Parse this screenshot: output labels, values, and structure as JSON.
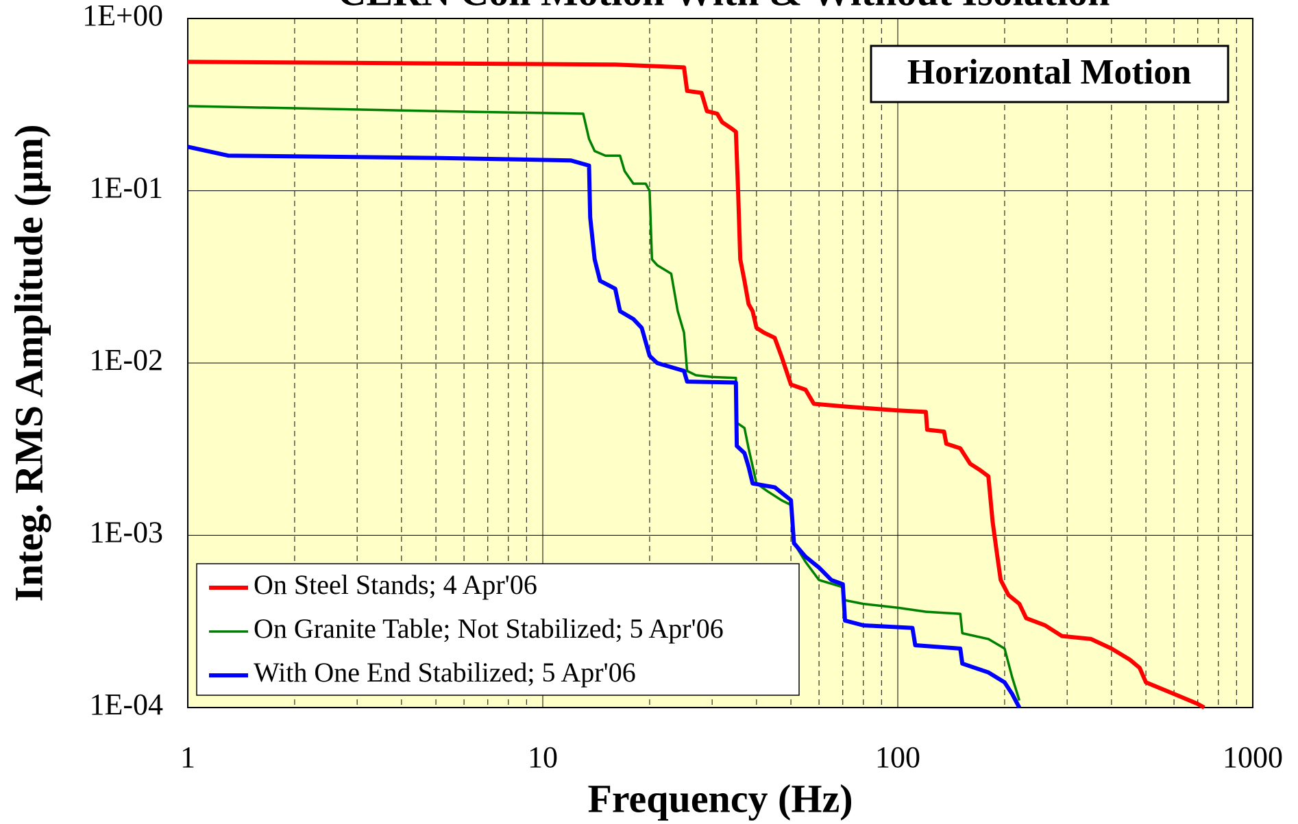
{
  "chart_data": {
    "type": "line",
    "title": "CERN Coil Motion With & Without Isolation",
    "x_label": "Frequency (Hz)",
    "y_label": "Integ. RMS Amplitude (µm)",
    "annotation": "Horizontal Motion",
    "x_log": true,
    "y_log": true,
    "xlim": [
      1,
      1000
    ],
    "ylim": [
      0.0001,
      1
    ],
    "xticks": [
      1,
      10,
      100,
      1000
    ],
    "x_minor_gridlines": [
      2,
      3,
      4,
      5,
      6,
      7,
      8,
      9,
      20,
      30,
      40,
      50,
      60,
      70,
      80,
      90,
      200,
      300,
      400,
      500,
      600,
      700,
      800,
      900
    ],
    "yticks": [
      {
        "value": 0.0001,
        "label": "1E-04"
      },
      {
        "value": 0.001,
        "label": "1E-03"
      },
      {
        "value": 0.01,
        "label": "1E-02"
      },
      {
        "value": 0.1,
        "label": "1E-01"
      },
      {
        "value": 1,
        "label": "1E+00"
      }
    ],
    "grid": true,
    "legend": "lower left",
    "background": "#ffffc8",
    "series": [
      {
        "name": "On Steel Stands; 4 Apr'06",
        "color": "#ff0000",
        "x": [
          1,
          16,
          25,
          25.5,
          28,
          29,
          31,
          32,
          34,
          35,
          35.5,
          36,
          37,
          38,
          39,
          40,
          42,
          45,
          47,
          50,
          55,
          58,
          70,
          100,
          120,
          121,
          135,
          137,
          150,
          160,
          170,
          180,
          185,
          190,
          195,
          205,
          220,
          230,
          260,
          290,
          350,
          400,
          450,
          480,
          500,
          600,
          700,
          730
        ],
        "values": [
          0.56,
          0.54,
          0.52,
          0.38,
          0.37,
          0.29,
          0.28,
          0.25,
          0.23,
          0.22,
          0.1,
          0.04,
          0.03,
          0.022,
          0.02,
          0.016,
          0.015,
          0.014,
          0.011,
          0.0075,
          0.007,
          0.0058,
          0.0056,
          0.0053,
          0.0052,
          0.0041,
          0.004,
          0.0034,
          0.0032,
          0.0026,
          0.0024,
          0.0022,
          0.0012,
          0.0008,
          0.00055,
          0.00045,
          0.0004,
          0.00033,
          0.0003,
          0.00026,
          0.00025,
          0.00022,
          0.00019,
          0.00017,
          0.00014,
          0.00012,
          0.000105,
          0.0001
        ]
      },
      {
        "name": "On Granite Table; Not Stabilized; 5 Apr'06",
        "color": "#008000",
        "x": [
          1,
          5,
          13,
          13.5,
          14,
          15,
          16.5,
          17,
          18,
          19.5,
          20,
          20.3,
          21,
          23,
          24,
          25,
          25.5,
          27,
          30,
          35,
          35.2,
          37,
          38,
          40,
          43,
          47,
          50,
          51,
          55,
          60,
          70,
          71,
          80,
          100,
          120,
          150,
          152,
          180,
          200,
          210,
          220
        ],
        "values": [
          0.31,
          0.29,
          0.28,
          0.2,
          0.17,
          0.16,
          0.16,
          0.13,
          0.11,
          0.11,
          0.1,
          0.04,
          0.037,
          0.033,
          0.02,
          0.015,
          0.009,
          0.0085,
          0.0083,
          0.0082,
          0.0045,
          0.0042,
          0.0032,
          0.002,
          0.0018,
          0.0016,
          0.0015,
          0.0009,
          0.0007,
          0.00055,
          0.0005,
          0.00042,
          0.0004,
          0.00038,
          0.00036,
          0.00035,
          0.00027,
          0.00025,
          0.00022,
          0.00015,
          0.00011
        ]
      },
      {
        "name": "With One End Stabilized; 5 Apr'06",
        "color": "#0000ff",
        "x": [
          1,
          1.3,
          5,
          12,
          13.5,
          13.6,
          14,
          14.5,
          16,
          16.5,
          18,
          19,
          20,
          21,
          25,
          25.5,
          35,
          35.2,
          37,
          38,
          39,
          45,
          50,
          51,
          55,
          60,
          65,
          70,
          71,
          80,
          110,
          112,
          150,
          152,
          180,
          200,
          210,
          220
        ],
        "values": [
          0.18,
          0.16,
          0.155,
          0.15,
          0.14,
          0.07,
          0.04,
          0.03,
          0.027,
          0.02,
          0.018,
          0.016,
          0.011,
          0.01,
          0.009,
          0.0078,
          0.0077,
          0.0033,
          0.003,
          0.0025,
          0.002,
          0.0019,
          0.0016,
          0.0009,
          0.00075,
          0.00065,
          0.00055,
          0.00052,
          0.00032,
          0.0003,
          0.00029,
          0.00023,
          0.00022,
          0.00018,
          0.00016,
          0.00014,
          0.00012,
          0.0001
        ]
      }
    ]
  }
}
